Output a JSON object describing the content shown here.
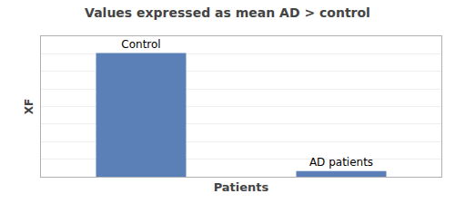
{
  "chart_data": {
    "type": "bar",
    "title": "Values expressed as mean AD > control",
    "xlabel": "Patients",
    "ylabel": "XF",
    "categories": [
      "Control",
      "AD patients"
    ],
    "values": [
      0.88,
      0.04
    ],
    "color": "#5b80b8",
    "ylim": [
      0,
      1.0
    ],
    "yticks": [
      0,
      0.125,
      0.25,
      0.375,
      0.5,
      0.625,
      0.75,
      0.875,
      1.0
    ],
    "grid": true,
    "tick_labels": false
  }
}
